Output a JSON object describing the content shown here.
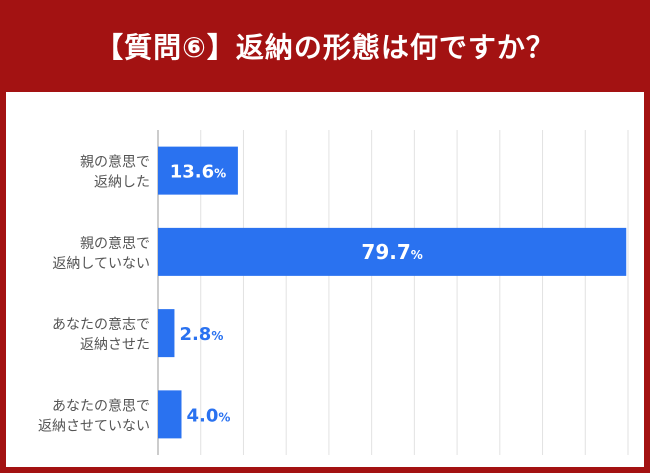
{
  "header": {
    "title": "【質問⑥】返納の形態は何ですか？"
  },
  "chart_data": {
    "type": "bar",
    "orientation": "horizontal",
    "title": "【質問⑥】返納の形態は何ですか？",
    "categories": [
      [
        "親の意思で",
        "返納した"
      ],
      [
        "親の意思で",
        "返納していない"
      ],
      [
        "あなたの意志で",
        "返納させた"
      ],
      [
        "あなたの意思で",
        "返納させていない"
      ]
    ],
    "values": [
      13.6,
      79.7,
      2.8,
      4.0
    ],
    "value_labels": [
      "13.6",
      "79.7",
      "2.8",
      "4.0"
    ],
    "unit": "%",
    "xlim": [
      0,
      80
    ],
    "grid": true,
    "colors": {
      "bar": "#2a72f0",
      "inside_label": "#ffffff",
      "outside_label": "#2a72f0",
      "header": "#a31212"
    }
  }
}
